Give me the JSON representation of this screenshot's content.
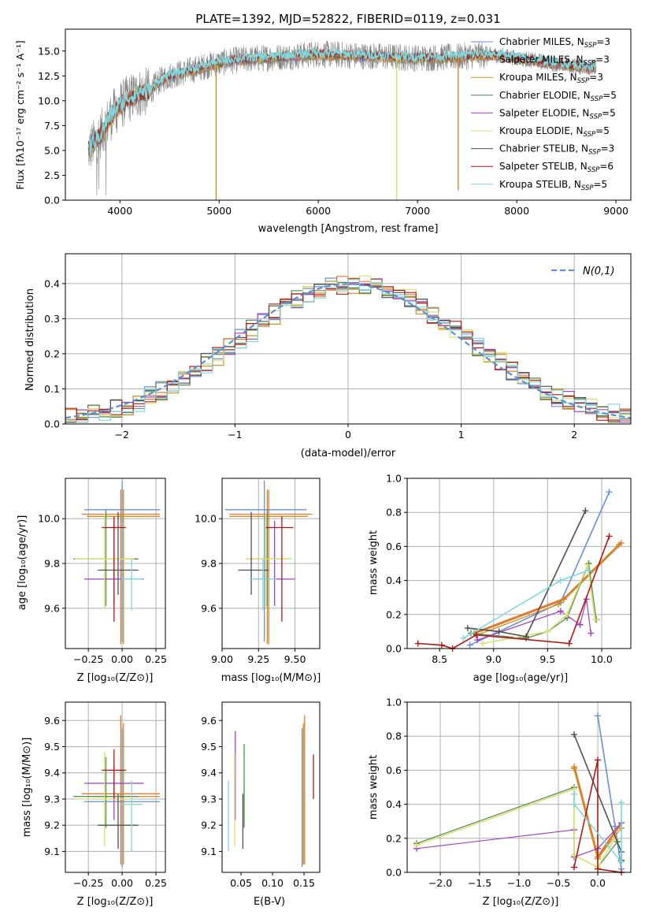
{
  "figure_title": "PLATE=1392, MJD=52822, FIBERID=0119, z=0.031",
  "colors": {
    "models": [
      "#6a8fd6",
      "#e07a30",
      "#c89020",
      "#4f8a4f",
      "#a040c0",
      "#d8e070",
      "#505050",
      "#b01818",
      "#80d8dc"
    ],
    "gaussian": "#5a8fd6",
    "observed": "#808080",
    "grid": "#b0b0b0"
  },
  "chart_data": [
    {
      "id": "spectrum",
      "type": "line",
      "title": "PLATE=1392, MJD=52822, FIBERID=0119, z=0.031",
      "xlabel": "wavelength [Angstrom, rest frame]",
      "ylabel": "Flux [fλ10⁻¹⁷ erg cm⁻² s⁻¹ A⁻¹]",
      "xlim": [
        3450,
        9150
      ],
      "ylim": [
        0,
        17.2
      ],
      "xticks": [
        4000,
        5000,
        6000,
        7000,
        8000,
        9000
      ],
      "yticks": [
        0.0,
        2.5,
        5.0,
        7.5,
        10.0,
        12.5,
        15.0
      ],
      "grid": false,
      "legend_position": "right",
      "legend": [
        {
          "label": "Chabrier MILES, N",
          "sub": "SSP",
          "tail": "=3"
        },
        {
          "label": "Salpeter MILES, N",
          "sub": "SSP",
          "tail": "=3"
        },
        {
          "label": "Kroupa MILES, N",
          "sub": "SSP",
          "tail": "=3"
        },
        {
          "label": "Chabrier ELODIE, N",
          "sub": "SSP",
          "tail": "=5"
        },
        {
          "label": "Salpeter ELODIE, N",
          "sub": "SSP",
          "tail": "=5"
        },
        {
          "label": "Kroupa ELODIE, N",
          "sub": "SSP",
          "tail": "=5"
        },
        {
          "label": "Chabrier STELIB, N",
          "sub": "SSP",
          "tail": "=3"
        },
        {
          "label": "Salpeter STELIB, N",
          "sub": "SSP",
          "tail": "=6"
        },
        {
          "label": "Kroupa STELIB, N",
          "sub": "SSP",
          "tail": "=5"
        }
      ],
      "observed_envelope": {
        "wavelength": [
          3680,
          3800,
          3900,
          4000,
          4100,
          4200,
          4300,
          4400,
          4500,
          4700,
          4900,
          5100,
          5300,
          5600,
          6000,
          6500,
          7000,
          7400,
          7600,
          7800,
          8000,
          8200,
          8500,
          8800
        ],
        "flux": [
          5.0,
          6.5,
          8.3,
          9.5,
          10.3,
          10.8,
          10.9,
          12.0,
          12.5,
          13.0,
          13.6,
          14.0,
          14.2,
          14.4,
          14.7,
          14.5,
          14.3,
          14.4,
          14.6,
          14.6,
          14.3,
          14.0,
          13.6,
          13.3
        ]
      },
      "observed_noise": 1.4,
      "model_spikes": [
        {
          "x": 4970,
          "to": 0.0,
          "series": 2
        },
        {
          "x": 6790,
          "to": 0.0,
          "series": 5
        },
        {
          "x": 7410,
          "to": 1.0,
          "series": 1
        }
      ]
    },
    {
      "id": "residuals",
      "type": "histogram",
      "xlabel": "(data-model)/error",
      "ylabel": "Normed distribution",
      "xlim": [
        -2.5,
        2.5
      ],
      "ylim": [
        0,
        0.485
      ],
      "xticks": [
        -2,
        -1,
        0,
        1,
        2
      ],
      "yticks": [
        0.0,
        0.1,
        0.2,
        0.3,
        0.4
      ],
      "grid": true,
      "legend_position": "top-right",
      "gaussian_label": "N(0,1)",
      "bin_edges_start": -2.5,
      "bin_width": 0.1,
      "bin_count": 50
    },
    {
      "id": "age_vs_Z",
      "type": "errorbar",
      "xlabel": "Z [log₁₀(Z/Z⊙)]",
      "ylabel": "age  [log₁₀(age/yr)]",
      "xlim": [
        -0.42,
        0.32
      ],
      "ylim": [
        9.42,
        10.18
      ],
      "xticks": [
        -0.25,
        0.0,
        0.25
      ],
      "xtick_labels": [
        "−0.25",
        "0.00",
        "0.25"
      ],
      "yticks": [
        9.6,
        9.8,
        10.0
      ],
      "grid": true,
      "points": [
        {
          "x": 0.0,
          "y": 10.04,
          "xerr": [
            0.28,
            0.28
          ],
          "yerr": [
            0.59,
            0.13
          ],
          "series": 0
        },
        {
          "x": -0.01,
          "y": 10.02,
          "xerr": [
            0.29,
            0.29
          ],
          "yerr": [
            0.58,
            0.11
          ],
          "series": 1
        },
        {
          "x": 0.01,
          "y": 10.01,
          "xerr": [
            0.27,
            0.27
          ],
          "yerr": [
            0.57,
            0.12
          ],
          "series": 2
        },
        {
          "x": -0.12,
          "y": 9.82,
          "xerr": [
            0.24,
            0.24
          ],
          "yerr": [
            0.21,
            0.22
          ],
          "series": 3
        },
        {
          "x": -0.06,
          "y": 9.73,
          "xerr": [
            0.22,
            0.22
          ],
          "yerr": [
            0.12,
            0.26
          ],
          "series": 4
        },
        {
          "x": -0.13,
          "y": 9.82,
          "xerr": [
            0.22,
            0.22
          ],
          "yerr": [
            0.22,
            0.2
          ],
          "series": 5
        },
        {
          "x": -0.03,
          "y": 9.77,
          "xerr": [
            0.15,
            0.15
          ],
          "yerr": [
            0.11,
            0.26
          ],
          "series": 6
        },
        {
          "x": -0.06,
          "y": 9.96,
          "xerr": [
            0.09,
            0.09
          ],
          "yerr": [
            0.42,
            0.05
          ],
          "series": 7
        },
        {
          "x": 0.07,
          "y": 9.73,
          "xerr": [
            0.08,
            0.08
          ],
          "yerr": [
            0.14,
            0.09
          ],
          "series": 8
        }
      ]
    },
    {
      "id": "age_vs_mass",
      "type": "errorbar",
      "xlabel": "mass [log₁₀(M/M⊙)]",
      "xlim": [
        9.0,
        9.67
      ],
      "ylim": [
        9.42,
        10.18
      ],
      "xticks": [
        9.0,
        9.25,
        9.5
      ],
      "xtick_labels": [
        "9.00",
        "9.25",
        "9.50"
      ],
      "yticks": [
        9.6,
        9.8,
        10.0
      ],
      "grid": true,
      "points": [
        {
          "x": 9.29,
          "y": 10.04,
          "xerr": [
            0.27,
            0.29
          ],
          "yerr": [
            0.59,
            0.13
          ],
          "series": 0
        },
        {
          "x": 9.32,
          "y": 10.02,
          "xerr": [
            0.27,
            0.3
          ],
          "yerr": [
            0.58,
            0.11
          ],
          "series": 1
        },
        {
          "x": 9.31,
          "y": 10.01,
          "xerr": [
            0.26,
            0.28
          ],
          "yerr": [
            0.57,
            0.12
          ],
          "series": 2
        },
        {
          "x": 9.31,
          "y": 9.82,
          "xerr": [
            0.12,
            0.15
          ],
          "yerr": [
            0.21,
            0.22
          ],
          "series": 3
        },
        {
          "x": 9.36,
          "y": 9.73,
          "xerr": [
            0.14,
            0.14
          ],
          "yerr": [
            0.12,
            0.26
          ],
          "series": 4
        },
        {
          "x": 9.3,
          "y": 9.82,
          "xerr": [
            0.14,
            0.18
          ],
          "yerr": [
            0.22,
            0.2
          ],
          "series": 5
        },
        {
          "x": 9.2,
          "y": 9.77,
          "xerr": [
            0.09,
            0.12
          ],
          "yerr": [
            0.11,
            0.26
          ],
          "series": 6
        },
        {
          "x": 9.41,
          "y": 9.96,
          "xerr": [
            0.11,
            0.08
          ],
          "yerr": [
            0.42,
            0.05
          ],
          "series": 7
        },
        {
          "x": 9.28,
          "y": 9.73,
          "xerr": [
            0.09,
            0.09
          ],
          "yerr": [
            0.14,
            0.09
          ],
          "series": 8
        }
      ]
    },
    {
      "id": "weight_vs_age",
      "type": "line",
      "xlabel": "age  [log₁₀(age/yr)]",
      "ylabel": "mass weight",
      "xlim": [
        8.2,
        10.27
      ],
      "ylim": [
        0,
        1.0
      ],
      "xticks": [
        8.5,
        9.0,
        9.5,
        10.0
      ],
      "yticks": [
        0.0,
        0.2,
        0.4,
        0.6,
        0.8,
        1.0
      ],
      "grid": true,
      "series": [
        {
          "x": [
            8.78,
            9.62,
            10.07
          ],
          "y": [
            0.02,
            0.27,
            0.92
          ],
          "color_index": 0,
          "width": 1.6
        },
        {
          "x": [
            8.82,
            9.65,
            10.18
          ],
          "y": [
            0.09,
            0.29,
            0.62
          ],
          "color_index": 1,
          "width": 3.0
        },
        {
          "x": [
            8.85,
            9.6,
            10.16
          ],
          "y": [
            0.08,
            0.26,
            0.61
          ],
          "color_index": 2,
          "width": 1.2
        },
        {
          "x": [
            8.79,
            9.3,
            9.5,
            9.68,
            9.88,
            9.95
          ],
          "y": [
            0.09,
            0.06,
            0.1,
            0.18,
            0.5,
            0.17
          ],
          "color_index": 3,
          "width": 1.2
        },
        {
          "x": [
            8.85,
            9.62,
            9.8,
            9.86,
            9.9
          ],
          "y": [
            0.05,
            0.22,
            0.14,
            0.29,
            0.09
          ],
          "color_index": 4,
          "width": 1.2
        },
        {
          "x": [
            8.9,
            9.5,
            9.68,
            9.87,
            9.94
          ],
          "y": [
            0.03,
            0.1,
            0.2,
            0.49,
            0.17
          ],
          "color_index": 5,
          "width": 1.6
        },
        {
          "x": [
            8.76,
            9.05,
            9.3,
            9.85
          ],
          "y": [
            0.12,
            0.1,
            0.07,
            0.81
          ],
          "color_index": 6,
          "width": 1.6
        },
        {
          "x": [
            8.3,
            8.52,
            8.62,
            8.84,
            9.7,
            10.07
          ],
          "y": [
            0.03,
            0.02,
            0.0,
            0.08,
            0.03,
            0.66
          ],
          "color_index": 7,
          "width": 1.6
        },
        {
          "x": [
            8.72,
            9.62,
            9.88
          ],
          "y": [
            0.06,
            0.4,
            0.46
          ],
          "color_index": 8,
          "width": 1.6
        }
      ]
    },
    {
      "id": "mass_vs_Z",
      "type": "errorbar",
      "xlabel": "Z [log₁₀(Z/Z⊙)]",
      "ylabel": "mass [log₁₀(M/M⊙)]",
      "xlim": [
        -0.42,
        0.32
      ],
      "ylim": [
        9.02,
        9.67
      ],
      "xticks": [
        -0.25,
        0.0,
        0.25
      ],
      "xtick_labels": [
        "−0.25",
        "0.00",
        "0.25"
      ],
      "yticks": [
        9.1,
        9.2,
        9.3,
        9.4,
        9.5,
        9.6
      ],
      "grid": true,
      "points": [
        {
          "x": 0.0,
          "y": 9.29,
          "xerr": [
            0.28,
            0.28
          ],
          "yerr": [
            0.25,
            0.28
          ],
          "series": 0
        },
        {
          "x": -0.01,
          "y": 9.32,
          "xerr": [
            0.29,
            0.29
          ],
          "yerr": [
            0.27,
            0.3
          ],
          "series": 1
        },
        {
          "x": 0.01,
          "y": 9.31,
          "xerr": [
            0.27,
            0.27
          ],
          "yerr": [
            0.26,
            0.28
          ],
          "series": 2
        },
        {
          "x": -0.12,
          "y": 9.31,
          "xerr": [
            0.24,
            0.24
          ],
          "yerr": [
            0.12,
            0.15
          ],
          "series": 3
        },
        {
          "x": -0.06,
          "y": 9.36,
          "xerr": [
            0.22,
            0.22
          ],
          "yerr": [
            0.14,
            0.07
          ],
          "series": 4
        },
        {
          "x": -0.13,
          "y": 9.3,
          "xerr": [
            0.22,
            0.22
          ],
          "yerr": [
            0.18,
            0.18
          ],
          "series": 5
        },
        {
          "x": -0.03,
          "y": 9.2,
          "xerr": [
            0.15,
            0.15
          ],
          "yerr": [
            0.09,
            0.12
          ],
          "series": 6
        },
        {
          "x": -0.06,
          "y": 9.41,
          "xerr": [
            0.09,
            0.09
          ],
          "yerr": [
            0.11,
            0.08
          ],
          "series": 7
        },
        {
          "x": 0.07,
          "y": 9.28,
          "xerr": [
            0.08,
            0.08
          ],
          "yerr": [
            0.18,
            0.09
          ],
          "series": 8
        }
      ]
    },
    {
      "id": "mass_vs_ebv",
      "type": "errorbar",
      "xlabel": "E(B-V)",
      "xlim": [
        0.02,
        0.175
      ],
      "ylim": [
        9.02,
        9.67
      ],
      "xticks": [
        0.05,
        0.1,
        0.15
      ],
      "xtick_labels": [
        "0.05",
        "0.10",
        "0.15"
      ],
      "yticks": [
        9.1,
        9.2,
        9.3,
        9.4,
        9.5,
        9.6
      ],
      "grid": false,
      "points": [
        {
          "x": 0.147,
          "y": 9.29,
          "yerr": [
            0.25,
            0.28
          ],
          "series": 0
        },
        {
          "x": 0.151,
          "y": 9.32,
          "yerr": [
            0.27,
            0.3
          ],
          "series": 1
        },
        {
          "x": 0.149,
          "y": 9.31,
          "yerr": [
            0.26,
            0.28
          ],
          "series": 2
        },
        {
          "x": 0.055,
          "y": 9.31,
          "yerr": [
            0.12,
            0.2
          ],
          "series": 3
        },
        {
          "x": 0.041,
          "y": 9.36,
          "yerr": [
            0.14,
            0.2
          ],
          "series": 4
        },
        {
          "x": 0.04,
          "y": 9.3,
          "yerr": [
            0.18,
            0.18
          ],
          "series": 5
        },
        {
          "x": 0.053,
          "y": 9.2,
          "yerr": [
            0.09,
            0.12
          ],
          "series": 6
        },
        {
          "x": 0.165,
          "y": 9.41,
          "yerr": [
            0.11,
            0.06
          ],
          "series": 7
        },
        {
          "x": 0.03,
          "y": 9.28,
          "yerr": [
            0.18,
            0.09
          ],
          "series": 8
        }
      ]
    },
    {
      "id": "weight_vs_Z",
      "type": "line",
      "xlabel": "Z [log₁₀(Z/Z⊙)]",
      "ylabel": "mass weight",
      "xlim": [
        -2.42,
        0.42
      ],
      "ylim": [
        0,
        1.0
      ],
      "xticks": [
        -2.0,
        -1.5,
        -1.0,
        -0.5,
        0.0
      ],
      "xtick_labels": [
        "−2.0",
        "−1.5",
        "−1.0",
        "−0.5",
        "0.0"
      ],
      "yticks": [
        0.0,
        0.2,
        0.4,
        0.6,
        0.8,
        1.0
      ],
      "grid": true,
      "series": [
        {
          "x": [
            0.0,
            0.22,
            0.3
          ],
          "y": [
            0.92,
            0.27,
            0.02
          ],
          "color_index": 0,
          "width": 1.6
        },
        {
          "x": [
            -0.3,
            0.0,
            0.3
          ],
          "y": [
            0.62,
            0.09,
            0.29
          ],
          "color_index": 1,
          "width": 3.0
        },
        {
          "x": [
            -0.3,
            0.0,
            0.3
          ],
          "y": [
            0.61,
            0.08,
            0.26
          ],
          "color_index": 2,
          "width": 1.2
        },
        {
          "x": [
            -2.3,
            -0.3,
            -0.3,
            0.0,
            0.25
          ],
          "y": [
            0.17,
            0.5,
            0.1,
            0.03,
            0.18
          ],
          "color_index": 3,
          "width": 1.2
        },
        {
          "x": [
            -2.3,
            -0.3,
            -0.3,
            0.0,
            0.3
          ],
          "y": [
            0.14,
            0.25,
            0.09,
            0.14,
            0.29
          ],
          "color_index": 4,
          "width": 1.2
        },
        {
          "x": [
            -2.3,
            -0.3,
            -0.3,
            0.0,
            0.22
          ],
          "y": [
            0.16,
            0.49,
            0.1,
            0.03,
            0.2
          ],
          "color_index": 5,
          "width": 1.6
        },
        {
          "x": [
            -0.3,
            0.3,
            0.3
          ],
          "y": [
            0.81,
            0.12,
            0.07
          ],
          "color_index": 6,
          "width": 1.6
        },
        {
          "x": [
            -0.3,
            0.0,
            0.0,
            0.3
          ],
          "y": [
            0.03,
            0.66,
            0.02,
            0.0
          ],
          "color_index": 7,
          "width": 1.6
        },
        {
          "x": [
            -0.3,
            -0.3,
            0.3,
            0.3
          ],
          "y": [
            0.46,
            0.4,
            0.06,
            0.41
          ],
          "color_index": 8,
          "width": 1.6
        }
      ]
    }
  ]
}
